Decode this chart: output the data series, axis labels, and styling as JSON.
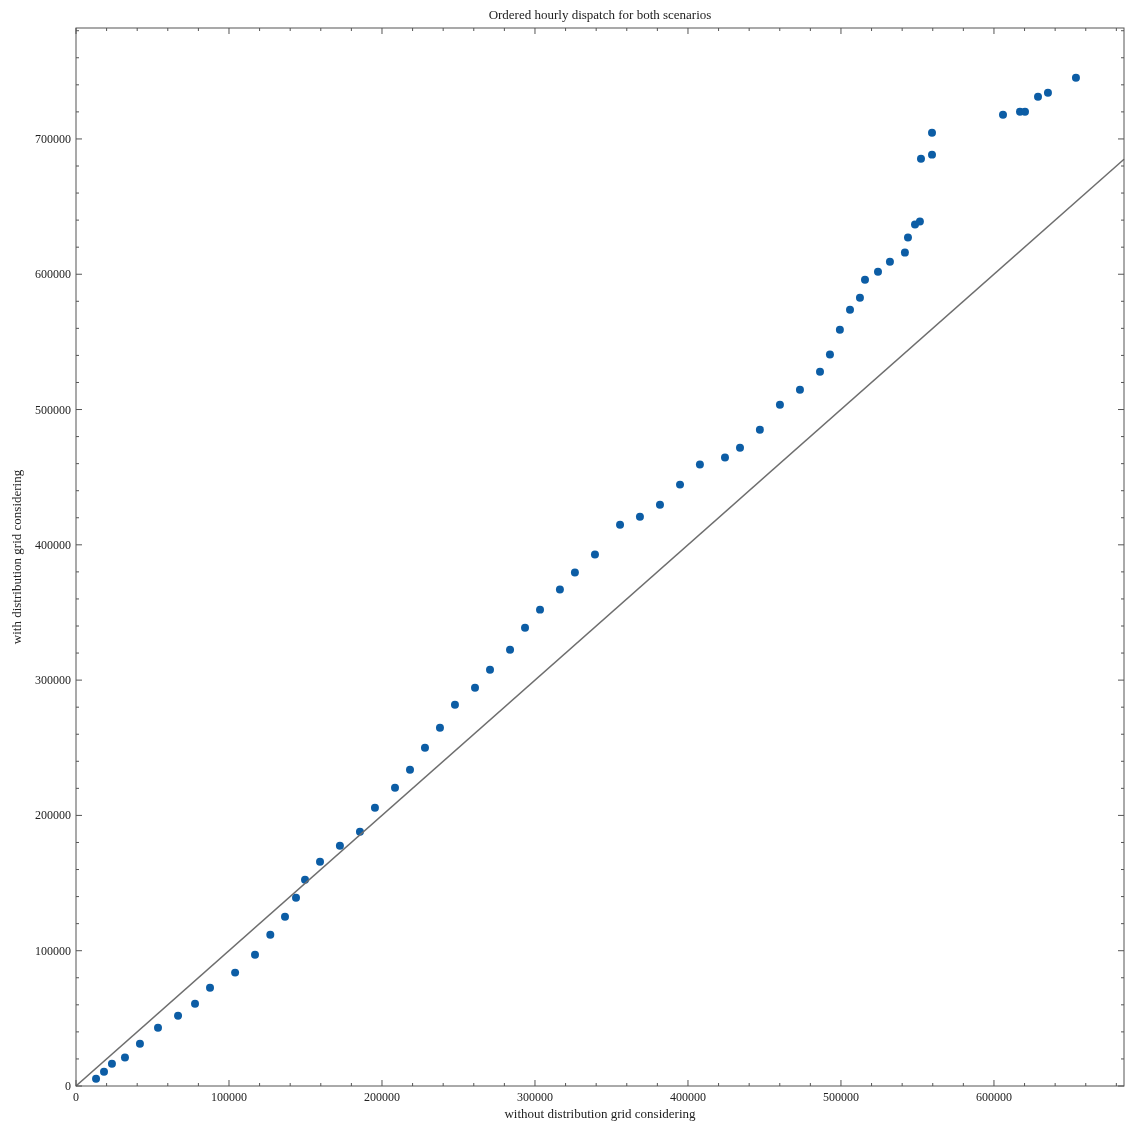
{
  "chart_data": {
    "type": "scatter",
    "title": "Ordered hourly dispatch for both scenarios",
    "xlabel": "without distribution grid considering",
    "ylabel": "with distribution grid considering",
    "marker": "circle",
    "grid": false,
    "xlim": [
      0,
      685000
    ],
    "ylim": [
      0,
      782000
    ],
    "xticks": [
      0,
      {
        "value": 20000,
        "label": null
      },
      {
        "value": 40000,
        "label": null
      },
      {
        "value": 60000,
        "label": null
      },
      {
        "value": 80000,
        "label": null
      },
      100000,
      {
        "value": 120000,
        "label": null
      },
      {
        "value": 140000,
        "label": null
      },
      {
        "value": 160000,
        "label": null
      },
      {
        "value": 180000,
        "label": null
      },
      200000,
      {
        "value": 220000,
        "label": null
      },
      {
        "value": 240000,
        "label": null
      },
      {
        "value": 260000,
        "label": null
      },
      {
        "value": 280000,
        "label": null
      },
      300000,
      {
        "value": 320000,
        "label": null
      },
      {
        "value": 340000,
        "label": null
      },
      {
        "value": 360000,
        "label": null
      },
      {
        "value": 380000,
        "label": null
      },
      400000,
      {
        "value": 420000,
        "label": null
      },
      {
        "value": 440000,
        "label": null
      },
      {
        "value": 460000,
        "label": null
      },
      {
        "value": 480000,
        "label": null
      },
      500000,
      {
        "value": 520000,
        "label": null
      },
      {
        "value": 540000,
        "label": null
      },
      {
        "value": 560000,
        "label": null
      },
      {
        "value": 580000,
        "label": null
      },
      600000,
      {
        "value": 620000,
        "label": null
      },
      {
        "value": 640000,
        "label": null
      },
      {
        "value": 660000,
        "label": null
      },
      {
        "value": 680000,
        "label": null
      }
    ],
    "yticks": [
      0,
      {
        "value": 20000,
        "label": null
      },
      {
        "value": 40000,
        "label": null
      },
      {
        "value": 60000,
        "label": null
      },
      {
        "value": 80000,
        "label": null
      },
      100000,
      {
        "value": 120000,
        "label": null
      },
      {
        "value": 140000,
        "label": null
      },
      {
        "value": 160000,
        "label": null
      },
      {
        "value": 180000,
        "label": null
      },
      200000,
      {
        "value": 220000,
        "label": null
      },
      {
        "value": 240000,
        "label": null
      },
      {
        "value": 260000,
        "label": null
      },
      {
        "value": 280000,
        "label": null
      },
      300000,
      {
        "value": 320000,
        "label": null
      },
      {
        "value": 340000,
        "label": null
      },
      {
        "value": 360000,
        "label": null
      },
      {
        "value": 380000,
        "label": null
      },
      400000,
      {
        "value": 420000,
        "label": null
      },
      {
        "value": 440000,
        "label": null
      },
      {
        "value": 460000,
        "label": null
      },
      {
        "value": 480000,
        "label": null
      },
      500000,
      {
        "value": 520000,
        "label": null
      },
      {
        "value": 540000,
        "label": null
      },
      {
        "value": 560000,
        "label": null
      },
      {
        "value": 580000,
        "label": null
      },
      600000,
      {
        "value": 620000,
        "label": null
      },
      {
        "value": 640000,
        "label": null
      },
      {
        "value": 660000,
        "label": null
      },
      {
        "value": 680000,
        "label": null
      },
      700000,
      {
        "value": 720000,
        "label": null
      },
      {
        "value": 740000,
        "label": null
      },
      {
        "value": 760000,
        "label": null
      },
      {
        "value": 780000,
        "label": null
      }
    ],
    "series": [
      {
        "color": "#0c5da5",
        "x": [
          13100,
          18300,
          23500,
          32000,
          41800,
          53600,
          66700,
          77800,
          87600,
          104000,
          117000,
          127000,
          136600,
          143800,
          149700,
          159500,
          172500,
          185600,
          195400,
          208500,
          218300,
          228100,
          237900,
          247700,
          260800,
          270600,
          283700,
          293500,
          303300,
          316300,
          326100,
          339200,
          355600,
          368600,
          381700,
          394800,
          407800,
          424200,
          434000,
          447000,
          460100,
          473200,
          486300,
          492800,
          499300,
          505900,
          512400,
          515700,
          524200,
          532000,
          541800,
          543800,
          548400,
          551600,
          552300,
          559500,
          559500,
          605900,
          617000,
          620300,
          628800,
          635300,
          653600
        ],
        "values": [
          5400,
          10600,
          16500,
          21000,
          31300,
          43100,
          52000,
          60800,
          72700,
          83800,
          97000,
          111800,
          125100,
          139200,
          152500,
          165800,
          177600,
          188000,
          205700,
          220500,
          233800,
          250000,
          264800,
          281800,
          294400,
          307700,
          322500,
          338700,
          352100,
          366900,
          379500,
          392800,
          414900,
          420800,
          429700,
          444500,
          459300,
          464500,
          471800,
          485100,
          503600,
          514700,
          528000,
          540600,
          559000,
          573800,
          582700,
          596000,
          601900,
          609300,
          616000,
          627100,
          636700,
          638900,
          685400,
          688400,
          704600,
          717900,
          720100,
          720100,
          731200,
          734100,
          745200
        ]
      },
      {
        "type": "line",
        "color": "#6e6e6e",
        "line_style": "solid",
        "marker": "none",
        "x": [
          0,
          685000
        ],
        "values": [
          0,
          685000
        ]
      }
    ]
  }
}
